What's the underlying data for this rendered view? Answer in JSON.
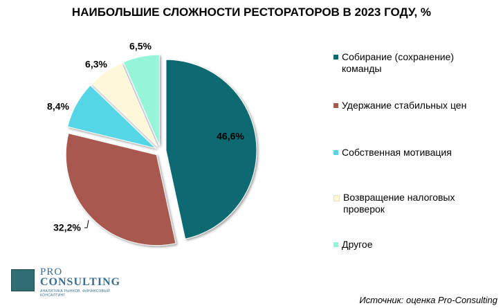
{
  "chart_data": {
    "type": "pie",
    "title": "НАИБОЛЬШИЕ СЛОЖНОСТИ РЕСТОРАТОРОВ В 2023 ГОДУ, %",
    "legend_position": "right",
    "slices": [
      {
        "name": "Собирание (сохранение) команды",
        "value": 46.6,
        "label": "46,6%",
        "color": "#076a70"
      },
      {
        "name": "Удержание стабильных цен",
        "value": 32.2,
        "label": "32,2%",
        "color": "#a8594f"
      },
      {
        "name": "Собственная мотивация",
        "value": 8.4,
        "label": "8,4%",
        "color": "#55d6e6"
      },
      {
        "name": "Возвращение налоговых проверок",
        "value": 6.3,
        "label": "6,3%",
        "color": "#fff8d8"
      },
      {
        "name": "Другое",
        "value": 6.5,
        "label": "6,5%",
        "color": "#96f5d8"
      }
    ]
  },
  "logo": {
    "line1": "PRO",
    "line2": "CONSULTING",
    "tagline": "АНАЛИТИКА РЫНКОВ. ФИНАНСОВЫЙ КОНСАЛТИНГ"
  },
  "source": "Источник: оценка Pro-Consulting"
}
